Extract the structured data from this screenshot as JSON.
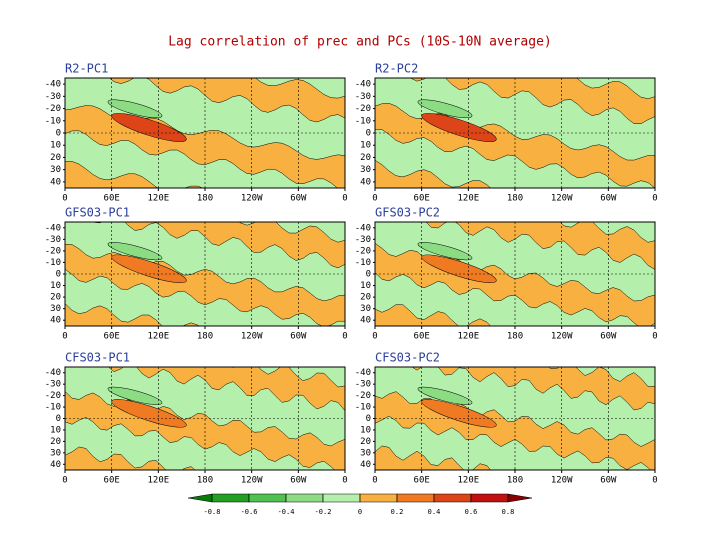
{
  "title": "Lag correlation of prec and PCs (10S-10N average)",
  "chart_data": [
    {
      "type": "contour",
      "title": "R2-PC1",
      "xlim": [
        0,
        360
      ],
      "xticks": [
        0,
        {
          "value": 60,
          "label": "60E"
        },
        {
          "value": 120,
          "label": "120E"
        },
        180,
        {
          "value": 240,
          "label": "120W"
        },
        {
          "value": 300,
          "label": "60W"
        },
        {
          "value": 360,
          "label": "0"
        }
      ],
      "ylim": [
        45,
        -45
      ],
      "yticks": [
        -40,
        -30,
        -20,
        -10,
        0,
        10,
        20,
        30,
        40
      ],
      "grid": true
    },
    {
      "type": "contour",
      "title": "R2-PC2",
      "xlim": [
        0,
        360
      ],
      "xticks": [
        0,
        {
          "value": 60,
          "label": "60E"
        },
        {
          "value": 120,
          "label": "120E"
        },
        180,
        {
          "value": 240,
          "label": "120W"
        },
        {
          "value": 300,
          "label": "60W"
        },
        {
          "value": 360,
          "label": "0"
        }
      ],
      "ylim": [
        45,
        -45
      ],
      "yticks": [
        -40,
        -30,
        -20,
        -10,
        0,
        10,
        20,
        30,
        40
      ],
      "grid": true
    },
    {
      "type": "contour",
      "title": "GFS03-PC1",
      "xlim": [
        0,
        360
      ],
      "xticks": [
        0,
        {
          "value": 60,
          "label": "60E"
        },
        {
          "value": 120,
          "label": "120E"
        },
        180,
        {
          "value": 240,
          "label": "120W"
        },
        {
          "value": 300,
          "label": "60W"
        },
        {
          "value": 360,
          "label": "0"
        }
      ],
      "ylim": [
        45,
        -45
      ],
      "yticks": [
        -40,
        -30,
        -20,
        -10,
        0,
        10,
        20,
        30,
        40
      ],
      "grid": true
    },
    {
      "type": "contour",
      "title": "GFS03-PC2",
      "xlim": [
        0,
        360
      ],
      "xticks": [
        0,
        {
          "value": 60,
          "label": "60E"
        },
        {
          "value": 120,
          "label": "120E"
        },
        180,
        {
          "value": 240,
          "label": "120W"
        },
        {
          "value": 300,
          "label": "60W"
        },
        {
          "value": 360,
          "label": "0"
        }
      ],
      "ylim": [
        45,
        -45
      ],
      "yticks": [
        -40,
        -30,
        -20,
        -10,
        0,
        10,
        20,
        30,
        40
      ],
      "grid": true
    },
    {
      "type": "contour",
      "title": "CFS03-PC1",
      "xlim": [
        0,
        360
      ],
      "xticks": [
        0,
        {
          "value": 60,
          "label": "60E"
        },
        {
          "value": 120,
          "label": "120E"
        },
        180,
        {
          "value": 240,
          "label": "120W"
        },
        {
          "value": 300,
          "label": "60W"
        },
        {
          "value": 360,
          "label": "0"
        }
      ],
      "ylim": [
        45,
        -45
      ],
      "yticks": [
        -40,
        -30,
        -20,
        -10,
        0,
        10,
        20,
        30,
        40
      ],
      "grid": true
    },
    {
      "type": "contour",
      "title": "CFS03-PC2",
      "xlim": [
        0,
        360
      ],
      "xticks": [
        0,
        {
          "value": 60,
          "label": "60E"
        },
        {
          "value": 120,
          "label": "120E"
        },
        180,
        {
          "value": 240,
          "label": "120W"
        },
        {
          "value": 300,
          "label": "60W"
        },
        {
          "value": 360,
          "label": "0"
        }
      ],
      "ylim": [
        45,
        -45
      ],
      "yticks": [
        -40,
        -30,
        -20,
        -10,
        0,
        10,
        20,
        30,
        40
      ],
      "grid": true
    }
  ],
  "colorbar": {
    "levels": [
      -0.8,
      -0.6,
      -0.4,
      -0.2,
      0,
      0.2,
      0.4,
      0.6,
      0.8
    ],
    "colors": [
      "#0a7a0a",
      "#22a022",
      "#50c050",
      "#8cdc84",
      "#b4f0ac",
      "#f8b040",
      "#f07a22",
      "#dd4418",
      "#c01010",
      "#8a0000"
    ]
  }
}
